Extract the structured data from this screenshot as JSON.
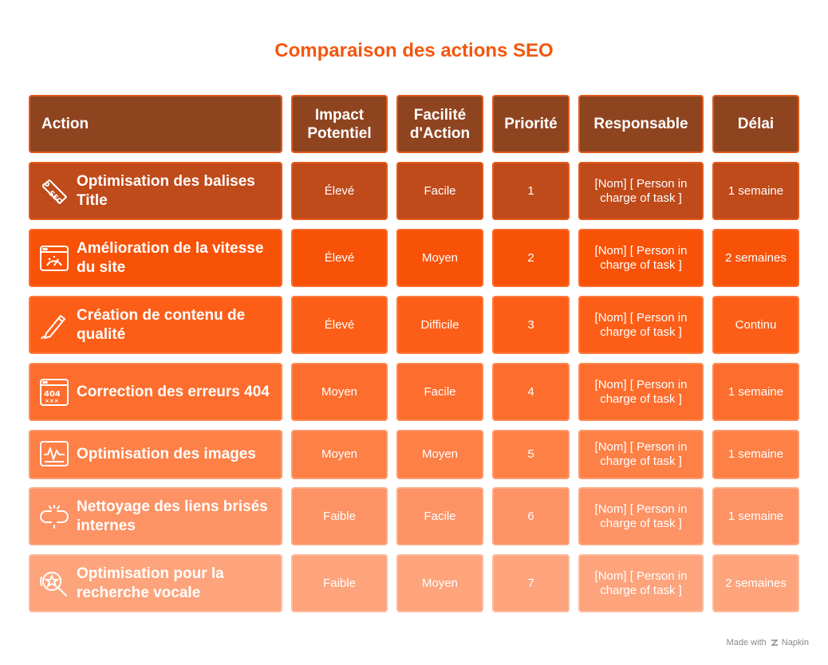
{
  "title": "Comparaison des actions SEO",
  "headers": [
    "Action",
    "Impact\nPotentiel",
    "Facilité\nd'Action",
    "Priorité",
    "Responsable",
    "Délai"
  ],
  "rows": [
    {
      "icon": "seo-tag-icon",
      "action": "Optimisation des balises Title",
      "impact": "Élevé",
      "facilite": "Facile",
      "priorite": "1",
      "responsable": "[Nom] [ Person in charge of task ]",
      "delai": "1 semaine",
      "color": "#bf4a1a",
      "border": "#e35a1b"
    },
    {
      "icon": "speed-window-icon",
      "action": "Amélioration de la vitesse du site",
      "impact": "Élevé",
      "facilite": "Moyen",
      "priorite": "2",
      "responsable": "[Nom] [ Person in charge of task ]",
      "delai": "2 semaines",
      "color": "#f85208",
      "border": "#fb6a2c"
    },
    {
      "icon": "pencil-icon",
      "action": "Création de contenu de qualité",
      "impact": "Élevé",
      "facilite": "Difficile",
      "priorite": "3",
      "responsable": "[Nom] [ Person in charge of task ]",
      "delai": "Continu",
      "color": "#fd5e17",
      "border": "#fe7a3e"
    },
    {
      "icon": "error-404-icon",
      "action": "Correction des erreurs 404",
      "impact": "Moyen",
      "facilite": "Facile",
      "priorite": "4",
      "responsable": "[Nom] [ Person in charge of task ]",
      "delai": "1 semaine",
      "color": "#fd6d2d",
      "border": "#fe8a55"
    },
    {
      "icon": "image-chart-icon",
      "action": "Optimisation des images",
      "impact": "Moyen",
      "facilite": "Moyen",
      "priorite": "5",
      "responsable": "[Nom] [ Person in charge of task ]",
      "delai": "1 semaine",
      "color": "#fd8047",
      "border": "#fe9a6e"
    },
    {
      "icon": "broken-link-icon",
      "action": "Nettoyage des liens brisés internes",
      "impact": "Faible",
      "facilite": "Facile",
      "priorite": "6",
      "responsable": "[Nom] [ Person in charge of task ]",
      "delai": "1 semaine",
      "color": "#fd9264",
      "border": "#feaa86"
    },
    {
      "icon": "voice-search-icon",
      "action": "Optimisation pour la recherche vocale",
      "impact": "Faible",
      "facilite": "Moyen",
      "priorite": "7",
      "responsable": "[Nom] [ Person in charge of task ]",
      "delai": "2 semaines",
      "color": "#fda47c",
      "border": "#febb9e"
    }
  ],
  "footer": {
    "made_with": "Made with",
    "brand": "Napkin"
  }
}
